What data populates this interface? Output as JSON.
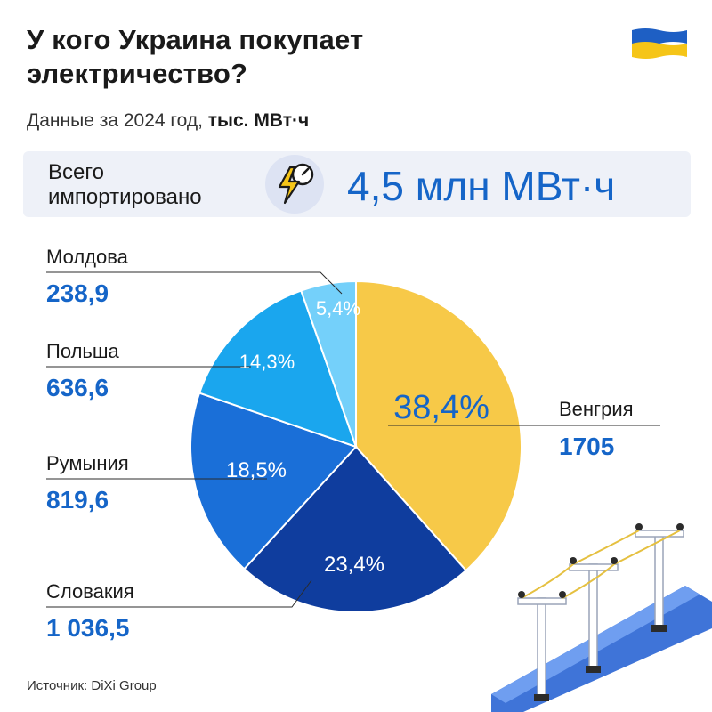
{
  "title": "У кого Украина покупает электричество?",
  "subtitle_prefix": "Данные за 2024 год, ",
  "subtitle_unit": "тыс. МВт·ч",
  "banner": {
    "label": "Всего\nимпортировано",
    "value": "4,5 млн МВт·ч",
    "icon": "lightning-meter-icon"
  },
  "source": "Источник: DiXi Group",
  "colors": {
    "accent": "#1565c8"
  },
  "chart_data": {
    "type": "pie",
    "title": "У кого Украина покупает электричество?",
    "unit": "тыс. МВт·ч",
    "slices": [
      {
        "name": "Венгрия",
        "value": 1705,
        "value_label": "1705",
        "percent": 38.4,
        "percent_label": "38,4%",
        "color": "#f7c948"
      },
      {
        "name": "Словакия",
        "value": 1036.5,
        "value_label": "1 036,5",
        "percent": 23.4,
        "percent_label": "23,4%",
        "color": "#0f3d9e"
      },
      {
        "name": "Румыния",
        "value": 819.6,
        "value_label": "819,6",
        "percent": 18.5,
        "percent_label": "18,5%",
        "color": "#1a6fd8"
      },
      {
        "name": "Польша",
        "value": 636.6,
        "value_label": "636,6",
        "percent": 14.3,
        "percent_label": "14,3%",
        "color": "#1aa6ee"
      },
      {
        "name": "Молдова",
        "value": 238.9,
        "value_label": "238,9",
        "percent": 5.4,
        "percent_label": "5,4%",
        "color": "#74d0fa"
      }
    ]
  }
}
